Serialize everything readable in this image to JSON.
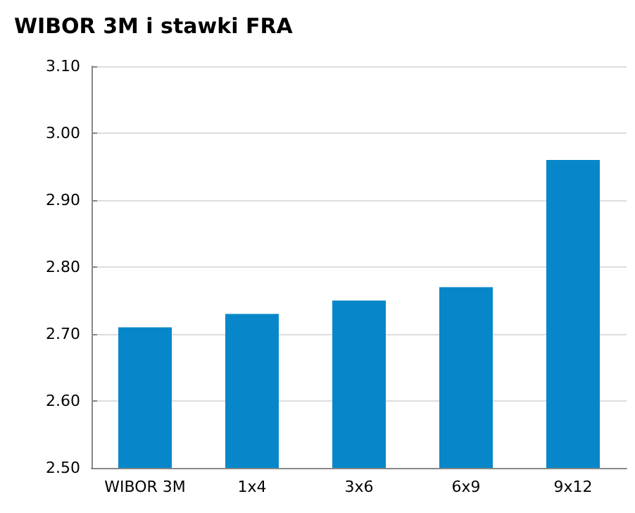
{
  "chart_data": {
    "type": "bar",
    "title": "WIBOR 3M i stawki FRA",
    "categories": [
      "WIBOR 3M",
      "1x4",
      "3x6",
      "6x9",
      "9x12"
    ],
    "values": [
      2.71,
      2.73,
      2.75,
      2.77,
      2.96
    ],
    "color": "#0787c9",
    "ylim": [
      2.5,
      3.1
    ],
    "yticks": [
      {
        "value": 2.5,
        "label": "2.50"
      },
      {
        "value": 2.6,
        "label": "2.60"
      },
      {
        "value": 2.7,
        "label": "2.70"
      },
      {
        "value": 2.8,
        "label": "2.80"
      },
      {
        "value": 2.9,
        "label": "2.90"
      },
      {
        "value": 3.0,
        "label": "3.00"
      },
      {
        "value": 3.1,
        "label": "3.10"
      }
    ],
    "grid": "y"
  }
}
